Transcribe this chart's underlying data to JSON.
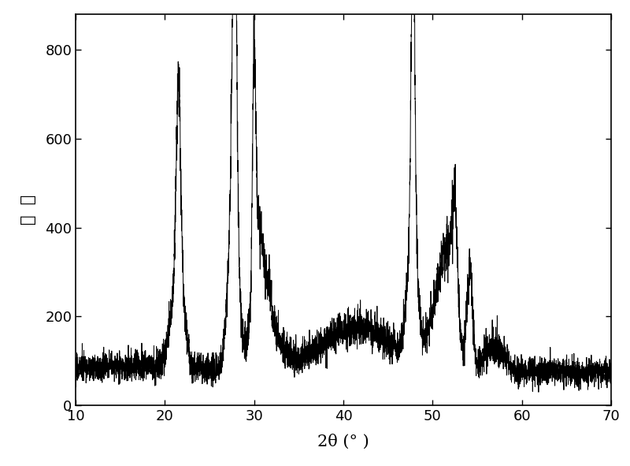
{
  "title": "",
  "xlabel": "2θ (° )",
  "ylabel": "强  度",
  "xlim": [
    10,
    70
  ],
  "ylim": [
    0,
    880
  ],
  "xticks": [
    10,
    20,
    30,
    40,
    50,
    60,
    70
  ],
  "yticks": [
    0,
    200,
    400,
    600,
    800
  ],
  "line_color": "#000000",
  "background_color": "#ffffff",
  "line_width": 0.7,
  "xlabel_fontsize": 15,
  "ylabel_fontsize": 15,
  "tick_fontsize": 13
}
